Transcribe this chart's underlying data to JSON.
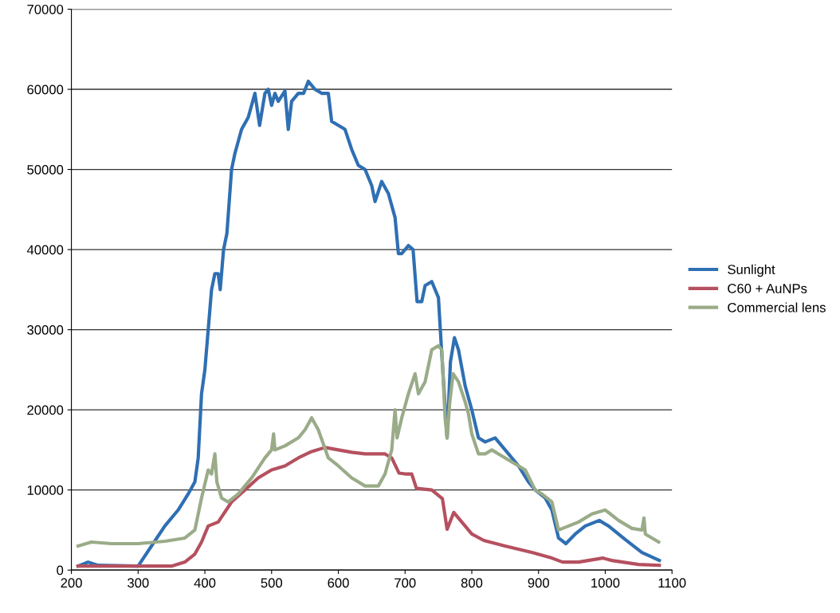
{
  "chart_data": {
    "type": "line",
    "xlim": [
      200,
      1100
    ],
    "ylim": [
      0,
      70000
    ],
    "xticks": [
      200,
      300,
      400,
      500,
      600,
      700,
      800,
      900,
      1000,
      1100
    ],
    "yticks": [
      0,
      10000,
      20000,
      30000,
      40000,
      50000,
      60000,
      70000
    ],
    "grid": "y",
    "legend": "right",
    "marker": "none",
    "line_style": "solid",
    "series": [
      {
        "name": "Sunlight",
        "color": "#2f6fb3",
        "x": [
          210,
          225,
          240,
          300,
          320,
          340,
          360,
          375,
          385,
          390,
          395,
          400,
          405,
          410,
          415,
          420,
          423,
          428,
          433,
          440,
          445,
          455,
          465,
          475,
          482,
          490,
          495,
          500,
          505,
          510,
          520,
          525,
          530,
          540,
          548,
          555,
          565,
          575,
          585,
          590,
          600,
          610,
          620,
          630,
          640,
          650,
          655,
          665,
          675,
          685,
          690,
          695,
          705,
          712,
          718,
          725,
          730,
          740,
          750,
          755,
          763,
          768,
          774,
          780,
          790,
          800,
          810,
          820,
          835,
          845,
          855,
          870,
          885,
          895,
          910,
          920,
          930,
          941,
          955,
          970,
          991,
          1005,
          1030,
          1055,
          1081
        ],
        "values": [
          500,
          1000,
          600,
          500,
          3000,
          5500,
          7500,
          9500,
          11000,
          14000,
          22000,
          25000,
          30000,
          35000,
          37000,
          37000,
          35000,
          40000,
          42000,
          50000,
          52000,
          55000,
          56500,
          59500,
          55500,
          59500,
          60000,
          58000,
          59500,
          58500,
          59800,
          55000,
          58500,
          59500,
          59500,
          61000,
          60000,
          59500,
          59500,
          56000,
          55500,
          55000,
          52500,
          50500,
          50000,
          48000,
          46000,
          48500,
          47000,
          44000,
          39500,
          39500,
          40500,
          40000,
          33500,
          33500,
          35500,
          36000,
          34000,
          27000,
          16500,
          26000,
          29000,
          27500,
          23000,
          20000,
          16500,
          16000,
          16500,
          15500,
          14500,
          13000,
          11000,
          10000,
          9000,
          7500,
          4000,
          3300,
          4500,
          5500,
          6200,
          5500,
          3800,
          2200,
          1200
        ]
      },
      {
        "name": "C60 + AuNPs",
        "color": "#b5505f",
        "x": [
          210,
          300,
          350,
          370,
          385,
          395,
          405,
          420,
          440,
          460,
          480,
          500,
          520,
          540,
          560,
          580,
          600,
          620,
          640,
          660,
          670,
          680,
          691,
          700,
          710,
          717,
          740,
          756,
          763,
          773,
          780,
          800,
          818,
          850,
          890,
          920,
          936,
          960,
          996,
          1010,
          1050,
          1081
        ],
        "values": [
          500,
          500,
          500,
          1000,
          2000,
          3500,
          5500,
          6000,
          8500,
          10000,
          11500,
          12500,
          13000,
          14000,
          14800,
          15300,
          15000,
          14700,
          14500,
          14500,
          14500,
          14000,
          12100,
          12000,
          12000,
          10200,
          10000,
          8900,
          5100,
          7200,
          6500,
          4500,
          3700,
          3000,
          2200,
          1500,
          1000,
          1000,
          1500,
          1200,
          700,
          600
        ]
      },
      {
        "name": "Commercial lens",
        "color": "#9aab88",
        "x": [
          210,
          230,
          260,
          300,
          340,
          370,
          385,
          395,
          405,
          410,
          415,
          418,
          425,
          435,
          450,
          470,
          490,
          500,
          503,
          505,
          520,
          540,
          550,
          560,
          570,
          585,
          600,
          620,
          640,
          660,
          670,
          680,
          685,
          688,
          695,
          705,
          715,
          720,
          730,
          740,
          750,
          755,
          760,
          763,
          767,
          772,
          780,
          790,
          795,
          800,
          810,
          820,
          830,
          840,
          860,
          880,
          895,
          905,
          920,
          930,
          945,
          960,
          980,
          1000,
          1020,
          1040,
          1055,
          1058,
          1060,
          1080
        ],
        "values": [
          3000,
          3500,
          3300,
          3300,
          3600,
          4000,
          5000,
          9000,
          12500,
          12000,
          14500,
          11000,
          9000,
          8500,
          9500,
          11500,
          14000,
          15000,
          17000,
          15000,
          15500,
          16500,
          17500,
          19000,
          17500,
          14000,
          13000,
          11500,
          10500,
          10500,
          12000,
          15000,
          20000,
          16500,
          19000,
          22000,
          24500,
          22000,
          23500,
          27500,
          28000,
          27500,
          19000,
          16500,
          21000,
          24500,
          23500,
          21000,
          19500,
          17000,
          14500,
          14500,
          15000,
          14500,
          13500,
          12500,
          10000,
          9500,
          8500,
          5000,
          5500,
          6000,
          7000,
          7500,
          6200,
          5200,
          5000,
          6500,
          4500,
          3500
        ]
      }
    ]
  }
}
